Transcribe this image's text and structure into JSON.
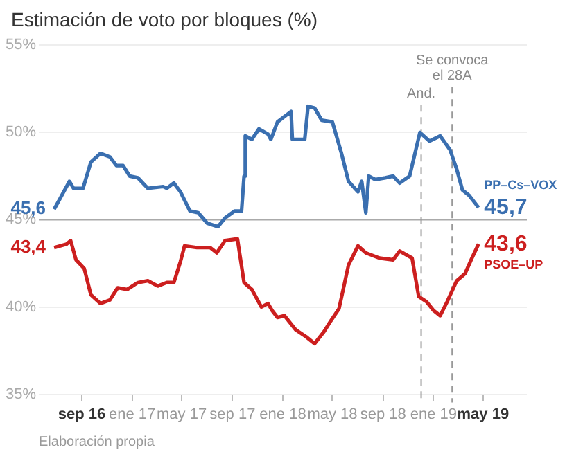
{
  "chart_data": {
    "type": "line",
    "title": "Estimación de voto por bloques (%)",
    "annotations": [
      "Elaboración propia"
    ],
    "xlim": [
      "2016-05-20",
      "2019-08-15"
    ],
    "xticks": [
      {
        "value": "2016-09-01",
        "label": "sep 16"
      },
      {
        "value": "2017-01-01",
        "label": "ene 17"
      },
      {
        "value": "2017-05-01",
        "label": "may 17"
      },
      {
        "value": "2017-09-01",
        "label": "sep 17"
      },
      {
        "value": "2018-01-01",
        "label": "ene 18"
      },
      {
        "value": "2018-05-01",
        "label": "may 18"
      },
      {
        "value": "2018-09-01",
        "label": "sep 18"
      },
      {
        "value": "2019-01-01",
        "label": "ene 19"
      },
      {
        "value": "2019-05-01",
        "label": "may 19"
      }
    ],
    "ylim": [
      35,
      55
    ],
    "yticks": [
      {
        "value": 35,
        "label": "35%"
      },
      {
        "value": 40,
        "label": "40%"
      },
      {
        "value": 45,
        "label": "45%"
      },
      {
        "value": 50,
        "label": "50%"
      },
      {
        "value": 55,
        "label": "55%"
      }
    ],
    "grid": "y",
    "legend": false,
    "marker": "none",
    "line_style": "solid",
    "ref_lines": [
      {
        "axis": "y",
        "value": 45,
        "label": null,
        "color": "#aaaaaa",
        "line_style": "solid"
      },
      {
        "axis": "x",
        "value": "2018-12-02",
        "label": "And.",
        "color": "#999999",
        "line_style": "dashed"
      },
      {
        "axis": "x",
        "value": "2019-02-15",
        "label": "Se convoca el 28A",
        "color": "#999999",
        "line_style": "dashed"
      }
    ],
    "series": [
      {
        "name": "PP–Cs–VOX",
        "color": "#3a6fb0",
        "x": [
          "2016-06-26",
          "2016-07-10",
          "2016-08-02",
          "2016-08-12",
          "2016-09-04",
          "2016-09-23",
          "2016-10-16",
          "2016-11-08",
          "2016-11-24",
          "2016-12-10",
          "2016-12-26",
          "2017-01-15",
          "2017-02-08",
          "2017-03-17",
          "2017-03-26",
          "2017-04-12",
          "2017-04-28",
          "2017-05-21",
          "2017-06-10",
          "2017-07-02",
          "2017-07-28",
          "2017-08-14",
          "2017-09-06",
          "2017-09-23",
          "2017-09-29",
          "2017-10-02",
          "2017-10-18",
          "2017-11-04",
          "2017-11-26",
          "2017-12-03",
          "2017-12-19",
          "2018-01-21",
          "2018-01-24",
          "2018-02-23",
          "2018-03-03",
          "2018-03-19",
          "2018-04-05",
          "2018-05-01",
          "2018-05-23",
          "2018-06-09",
          "2018-07-02",
          "2018-07-11",
          "2018-07-21",
          "2018-07-28",
          "2018-08-13",
          "2018-09-06",
          "2018-09-25",
          "2018-10-11",
          "2018-11-04",
          "2018-11-29",
          "2018-12-22",
          "2019-01-17",
          "2019-02-10",
          "2019-02-26",
          "2019-03-12",
          "2019-03-28",
          "2019-04-20"
        ],
        "values": [
          45.6,
          46.2,
          47.2,
          46.8,
          46.8,
          48.3,
          48.8,
          48.6,
          48.1,
          48.1,
          47.5,
          47.4,
          46.8,
          46.9,
          46.8,
          47.1,
          46.6,
          45.5,
          45.4,
          44.8,
          44.6,
          45.1,
          45.5,
          45.5,
          47.5,
          49.8,
          49.6,
          50.2,
          49.9,
          49.6,
          50.6,
          51.2,
          49.6,
          49.6,
          51.5,
          51.4,
          50.7,
          50.6,
          48.8,
          47.2,
          46.6,
          47.2,
          45.4,
          47.5,
          47.3,
          47.4,
          47.5,
          47.1,
          47.5,
          50.0,
          49.5,
          49.8,
          49.0,
          47.9,
          46.7,
          46.4,
          45.7
        ],
        "value_labels": [
          "45,6",
          null,
          null,
          null,
          null,
          null,
          null,
          null,
          null,
          null,
          null,
          null,
          null,
          null,
          null,
          null,
          null,
          null,
          null,
          null,
          null,
          null,
          null,
          null,
          null,
          null,
          null,
          null,
          null,
          null,
          null,
          null,
          null,
          null,
          null,
          null,
          null,
          null,
          null,
          null,
          null,
          null,
          null,
          null,
          null,
          null,
          null,
          null,
          null,
          null,
          null,
          null,
          null,
          null,
          null,
          null,
          "45,7"
        ]
      },
      {
        "name": "PSOE–UP",
        "color": "#cc1f1f",
        "x": [
          "2016-06-26",
          "2016-07-26",
          "2016-08-05",
          "2016-08-18",
          "2016-09-07",
          "2016-09-23",
          "2016-10-16",
          "2016-11-08",
          "2016-11-27",
          "2016-12-20",
          "2017-01-15",
          "2017-02-08",
          "2017-03-04",
          "2017-03-26",
          "2017-04-12",
          "2017-04-28",
          "2017-05-08",
          "2017-06-07",
          "2017-07-09",
          "2017-07-25",
          "2017-08-14",
          "2017-09-13",
          "2017-09-29",
          "2017-10-18",
          "2017-11-10",
          "2017-11-26",
          "2017-12-06",
          "2017-12-19",
          "2018-01-05",
          "2018-02-01",
          "2018-02-26",
          "2018-03-19",
          "2018-04-11",
          "2018-04-27",
          "2018-05-17",
          "2018-06-09",
          "2018-07-02",
          "2018-07-21",
          "2018-08-23",
          "2018-09-25",
          "2018-10-11",
          "2018-11-10",
          "2018-11-26",
          "2018-12-15",
          "2019-01-01",
          "2019-01-17",
          "2019-02-03",
          "2019-02-26",
          "2019-03-18",
          "2019-04-04",
          "2019-04-20"
        ],
        "values": [
          43.4,
          43.6,
          43.8,
          42.7,
          42.2,
          40.7,
          40.2,
          40.4,
          41.1,
          41.0,
          41.4,
          41.5,
          41.2,
          41.4,
          41.4,
          42.6,
          43.5,
          43.4,
          43.4,
          43.1,
          43.8,
          43.9,
          41.4,
          41.0,
          40.0,
          40.2,
          39.8,
          39.4,
          39.5,
          38.7,
          38.3,
          37.9,
          38.6,
          39.2,
          39.9,
          42.4,
          43.5,
          43.1,
          42.8,
          42.7,
          43.2,
          42.8,
          40.6,
          40.3,
          39.8,
          39.5,
          40.3,
          41.5,
          41.9,
          42.8,
          43.6
        ],
        "value_labels": [
          "43,4",
          null,
          null,
          null,
          null,
          null,
          null,
          null,
          null,
          null,
          null,
          null,
          null,
          null,
          null,
          null,
          null,
          null,
          null,
          null,
          null,
          null,
          null,
          null,
          null,
          null,
          null,
          null,
          null,
          null,
          null,
          null,
          null,
          null,
          null,
          null,
          null,
          null,
          null,
          null,
          null,
          null,
          null,
          null,
          null,
          null,
          null,
          null,
          null,
          null,
          "43,6"
        ]
      }
    ]
  }
}
